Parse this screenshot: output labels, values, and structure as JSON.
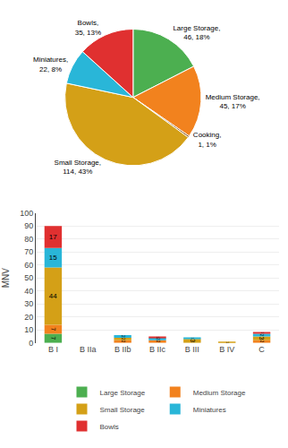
{
  "chart_data": [
    {
      "type": "pie",
      "categories": [
        "Large Storage",
        "Medium Storage",
        "Cooking",
        "Small Storage",
        "Miniatures",
        "Bowls"
      ],
      "values": [
        46,
        45,
        1,
        114,
        22,
        35
      ],
      "colors": [
        "#4CAF50",
        "#F2821E",
        "#7B3F00",
        "#D4A017",
        "#29B6D8",
        "#E03030"
      ],
      "annotations": [
        "Large Storage,\n46, 18%",
        "Medium Storage,\n45, 17%",
        "Cooking,\n1, 1%",
        "Small Storage,\n114, 43%",
        "Miniatures,\n22, 8%",
        "Bowls,\n35, 13%"
      ]
    },
    {
      "type": "bar",
      "categories": [
        "B I",
        "B IIa",
        "B IIb",
        "B IIc",
        "B III",
        "B IV",
        "C"
      ],
      "series": [
        {
          "name": "Large Storage",
          "color": "#4CAF50",
          "values": [
            7,
            0,
            0,
            0,
            0,
            0,
            0
          ]
        },
        {
          "name": "Medium Storage",
          "color": "#F2821E",
          "values": [
            7,
            0,
            2,
            2,
            0,
            0,
            2
          ]
        },
        {
          "name": "Small Storage",
          "color": "#D4A017",
          "values": [
            44,
            0,
            2,
            0,
            3,
            1,
            3
          ]
        },
        {
          "name": "Miniatures",
          "color": "#29B6D8",
          "values": [
            15,
            0,
            2,
            2,
            1,
            0,
            2
          ]
        },
        {
          "name": "Bowls",
          "color": "#E03030",
          "values": [
            17,
            0,
            0,
            1,
            0,
            0,
            1
          ]
        }
      ],
      "stacked": true,
      "y_label": "MNV",
      "ylim": [
        0,
        100
      ],
      "yticks": [
        0,
        10,
        20,
        30,
        40,
        50,
        60,
        70,
        80,
        90,
        100
      ],
      "grid": true,
      "data_labels": true,
      "legend": "bottom"
    }
  ]
}
